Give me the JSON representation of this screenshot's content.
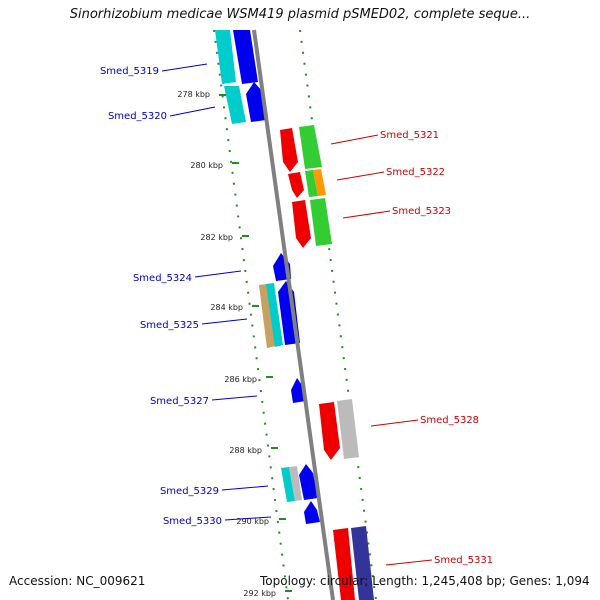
{
  "title": "Sinorhizobium medicae WSM419 plasmid pSMED02, complete seque...",
  "footer": {
    "accession": "Accession: NC_009621",
    "topology": "Topology: circular; Length: 1,245,408 bp; Genes: 1,094"
  },
  "colors": {
    "forward_label": "#0000cc",
    "reverse_label": "#cc0000",
    "backbone": "#808080",
    "ticks": "#228b22",
    "blue": "#0000ee",
    "cyan": "#00cccc",
    "red": "#ee0000",
    "green": "#33cc33",
    "orange": "#ff9900",
    "gray": "#bbbbbb",
    "tan": "#c8a060",
    "navy": "#333399"
  },
  "ticks": [
    {
      "label": "278 kbp"
    },
    {
      "label": "280 kbp"
    },
    {
      "label": "282 kbp"
    },
    {
      "label": "284 kbp"
    },
    {
      "label": "286 kbp"
    },
    {
      "label": "288 kbp"
    },
    {
      "label": "290 kbp"
    },
    {
      "label": "292 kbp"
    }
  ],
  "genes": [
    {
      "name": "Smed_5319",
      "strand": "forward"
    },
    {
      "name": "Smed_5320",
      "strand": "forward"
    },
    {
      "name": "Smed_5321",
      "strand": "reverse"
    },
    {
      "name": "Smed_5322",
      "strand": "reverse"
    },
    {
      "name": "Smed_5323",
      "strand": "reverse"
    },
    {
      "name": "Smed_5324",
      "strand": "forward"
    },
    {
      "name": "Smed_5325",
      "strand": "forward"
    },
    {
      "name": "Smed_5327",
      "strand": "forward"
    },
    {
      "name": "Smed_5328",
      "strand": "reverse"
    },
    {
      "name": "Smed_5329",
      "strand": "forward"
    },
    {
      "name": "Smed_5330",
      "strand": "forward"
    },
    {
      "name": "Smed_5331",
      "strand": "reverse"
    }
  ]
}
